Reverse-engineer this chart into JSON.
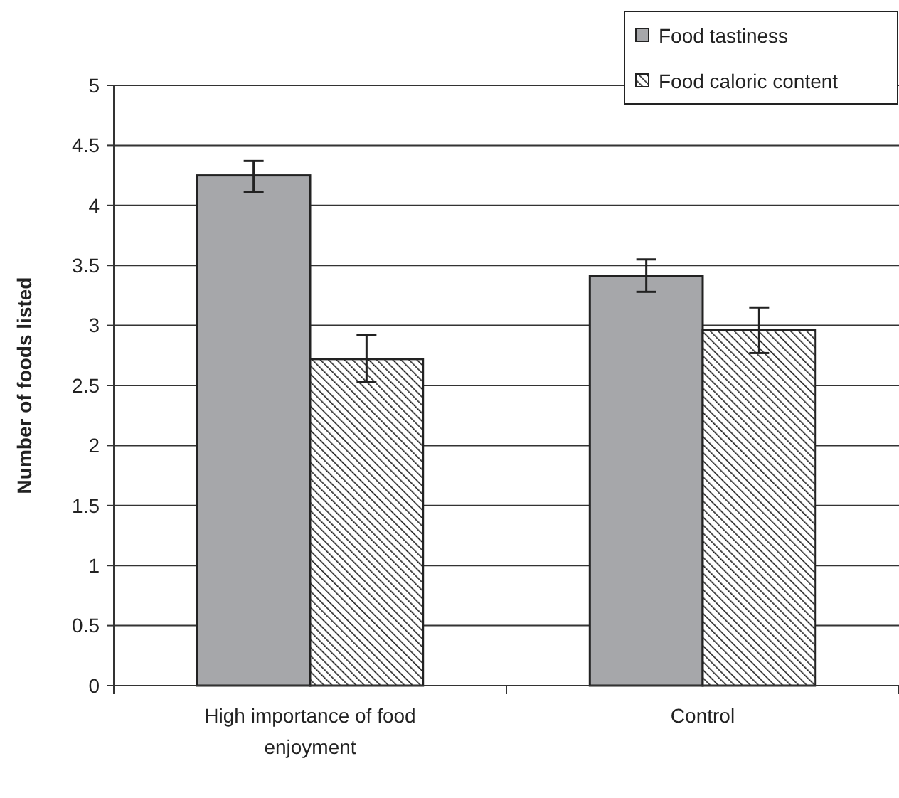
{
  "chart_data": {
    "type": "bar",
    "ylabel": "Number of foods listed",
    "categories": [
      "High importance of food enjoyment",
      "Control"
    ],
    "series": [
      {
        "name": "Food tastiness",
        "color": "#a6a7aa",
        "values": [
          4.25,
          3.41
        ],
        "errors": [
          [
            4.11,
            4.37
          ],
          [
            3.28,
            3.55
          ]
        ]
      },
      {
        "name": "Food caloric content",
        "color": "#222222",
        "values": [
          2.72,
          2.96
        ],
        "errors": [
          [
            2.53,
            2.92
          ],
          [
            2.77,
            3.15
          ]
        ]
      }
    ],
    "ylim": [
      0,
      5
    ],
    "yticks": [
      0,
      0.5,
      1,
      1.5,
      2,
      2.5,
      3,
      3.5,
      4,
      4.5,
      5
    ],
    "grid": "y",
    "legend": "top right"
  }
}
